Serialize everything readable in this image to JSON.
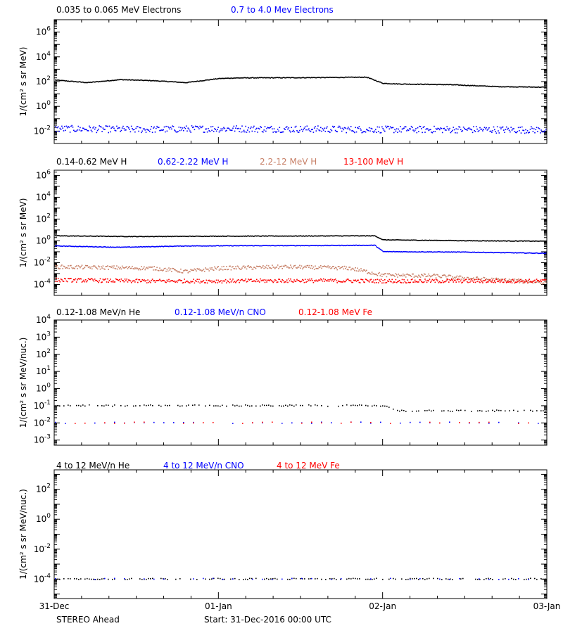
{
  "chart_data": [
    {
      "type": "scatter",
      "title": "",
      "legend": [
        "0.035 to 0.065 MeV Electrons",
        "0.7 to 4.0 Mev Electrons"
      ],
      "ylabel": "1/(cm² s sr MeV)",
      "yscale": "log",
      "ylim": [
        0.001,
        10000000
      ],
      "ytick_exponents": [
        -2,
        0,
        2,
        4,
        6
      ],
      "series": [
        {
          "name": "0.035 to 0.065 MeV Electrons",
          "color": "#000000",
          "x": [
            0,
            0.2,
            0.4,
            0.6,
            0.8,
            1.0,
            1.1,
            1.2,
            1.5,
            1.9,
            2.0,
            2.1,
            2.4,
            2.7,
            3.0
          ],
          "values": [
            130,
            80,
            140,
            115,
            80,
            170,
            190,
            195,
            200,
            220,
            70,
            62,
            55,
            38,
            34
          ]
        },
        {
          "name": "0.7 to 4.0 Mev Electrons",
          "color": "#0000ff",
          "x": [
            0,
            0.5,
            1.0,
            1.5,
            2.0,
            2.5,
            3.0
          ],
          "values": [
            0.015,
            0.013,
            0.015,
            0.014,
            0.013,
            0.013,
            0.012
          ]
        }
      ]
    },
    {
      "type": "scatter",
      "title": "",
      "legend": [
        "0.14-0.62 MeV H",
        "0.62-2.22 MeV H",
        "2.2-12 MeV H",
        "13-100 MeV H"
      ],
      "ylabel": "1/(cm² s sr MeV)",
      "yscale": "log",
      "ylim": [
        1e-05,
        3000000
      ],
      "ytick_exponents": [
        -4,
        -2,
        0,
        2,
        4,
        6
      ],
      "series": [
        {
          "name": "0.14-0.62 MeV H",
          "color": "#000000",
          "x": [
            0,
            0.5,
            1.0,
            1.5,
            1.95,
            2.0,
            2.5,
            3.0
          ],
          "values": [
            2.8,
            2.4,
            2.6,
            2.7,
            2.8,
            1.2,
            1.0,
            0.9
          ]
        },
        {
          "name": "0.62-2.22 MeV H",
          "color": "#0000ff",
          "x": [
            0,
            0.4,
            0.8,
            1.2,
            1.6,
            1.95,
            2.0,
            2.5,
            3.0
          ],
          "values": [
            0.33,
            0.25,
            0.33,
            0.35,
            0.36,
            0.38,
            0.1,
            0.09,
            0.07
          ]
        },
        {
          "name": "2.2-12 MeV H",
          "color": "#c77f66",
          "x": [
            0,
            0.3,
            0.6,
            0.8,
            1.0,
            1.4,
            1.8,
            2.0,
            2.3,
            2.6,
            3.0
          ],
          "values": [
            0.004,
            0.0035,
            0.003,
            0.0015,
            0.003,
            0.004,
            0.003,
            0.0007,
            0.0006,
            0.0003,
            0.00015
          ]
        },
        {
          "name": "13-100 MeV H",
          "color": "#ff0000",
          "x": [
            0,
            0.5,
            1.0,
            1.5,
            2.0,
            2.5,
            3.0
          ],
          "values": [
            0.00025,
            0.0002,
            0.0002,
            0.00022,
            0.0002,
            0.0002,
            0.0002
          ]
        }
      ]
    },
    {
      "type": "scatter",
      "title": "",
      "legend": [
        "0.12-1.08 MeV/n He",
        "0.12-1.08 MeV/n CNO",
        "0.12-1.08 MeV Fe"
      ],
      "ylabel": "1/(cm² s sr MeV/nuc.)",
      "yscale": "log",
      "ylim": [
        0.0005,
        10000
      ],
      "ytick_exponents": [
        -3,
        -2,
        -1,
        0,
        1,
        2,
        3,
        4
      ],
      "series": [
        {
          "name": "0.12-1.08 MeV/n He",
          "color": "#000000",
          "x": [
            0,
            0.5,
            1.0,
            1.5,
            2.0,
            2.1,
            2.5,
            3.0
          ],
          "values": [
            0.1,
            0.1,
            0.1,
            0.1,
            0.1,
            0.05,
            0.05,
            0.05
          ]
        },
        {
          "name": "0.12-1.08 MeV/n CNO",
          "color": "#0000ff",
          "x": [
            0,
            0.5,
            1.0,
            1.5,
            2.0,
            2.5,
            3.0
          ],
          "values": [
            0.01,
            0.01,
            0.01,
            0.01,
            0.01,
            0.01,
            0.01
          ]
        },
        {
          "name": "0.12-1.08 MeV Fe",
          "color": "#ff0000",
          "x": [
            0,
            0.5,
            1.0,
            1.5,
            2.0,
            2.5,
            3.0
          ],
          "values": [
            0.01,
            0.01,
            0.01,
            0.01,
            0.01,
            0.01,
            0.01
          ]
        }
      ]
    },
    {
      "type": "scatter",
      "title": "",
      "legend": [
        "4 to 12 MeV/n He",
        "4 to 12 MeV/n CNO",
        "4 to 12 MeV Fe"
      ],
      "ylabel": "1/(cm² s sr MeV/nuc.)",
      "yscale": "log",
      "ylim": [
        5e-06,
        2000
      ],
      "ytick_exponents": [
        -4,
        -2,
        0,
        2
      ],
      "series": [
        {
          "name": "4 to 12 MeV/n He",
          "color": "#000000",
          "x": [
            0,
            0.5,
            1.0,
            1.5,
            2.0,
            2.5,
            3.0
          ],
          "values": [
            0.0001,
            0.0001,
            0.0001,
            0.0001,
            0.0001,
            0.0001,
            0.0001
          ]
        },
        {
          "name": "4 to 12 MeV/n CNO",
          "color": "#0000ff",
          "x": [
            0,
            0.5,
            1.0,
            1.5,
            2.0,
            2.5,
            3.0
          ],
          "values": [
            0.0001,
            0.0001,
            0.0001,
            0.0001,
            0.0001,
            0.0001,
            0.0001
          ]
        },
        {
          "name": "4 to 12 MeV Fe",
          "color": "#ff0000",
          "x": [],
          "values": []
        }
      ]
    }
  ],
  "xaxis": {
    "xlim": [
      0,
      3
    ],
    "ticks": [
      0,
      1,
      2,
      3
    ],
    "tick_labels": [
      "31-Dec",
      "01-Jan",
      "02-Jan",
      "03-Jan"
    ],
    "minor_per_major": 6
  },
  "footer": {
    "spacecraft": "STEREO Ahead",
    "start": "Start: 31-Dec-2016 00:00 UTC"
  }
}
